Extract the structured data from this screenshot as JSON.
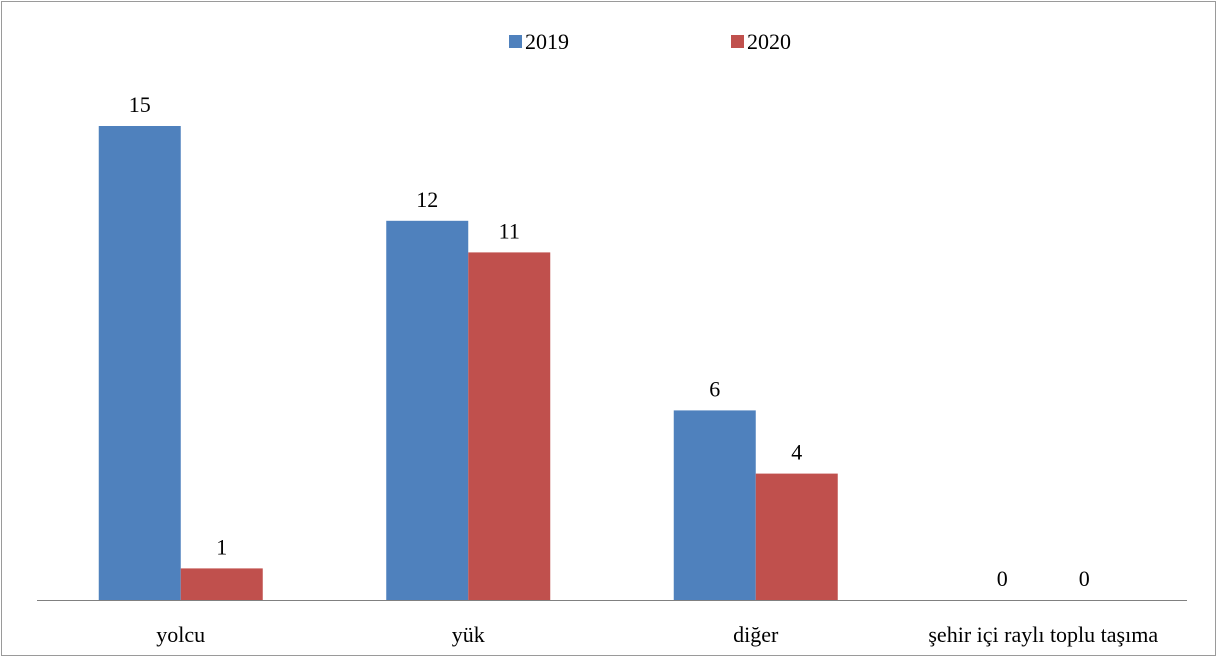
{
  "chart_data": {
    "type": "bar",
    "categories": [
      "yolcu",
      "yük",
      "diğer",
      "şehir içi raylı toplu taşıma"
    ],
    "series": [
      {
        "name": "2019",
        "values": [
          15,
          12,
          6,
          0
        ],
        "color": "#4f81bd"
      },
      {
        "name": "2020",
        "values": [
          1,
          11,
          4,
          0
        ],
        "color": "#c0504d"
      }
    ],
    "title": "",
    "xlabel": "",
    "ylabel": "",
    "ylim": [
      0,
      15
    ],
    "grid": false,
    "legend_position": "top-center",
    "data_labels": true,
    "axis_color": "#808080"
  }
}
